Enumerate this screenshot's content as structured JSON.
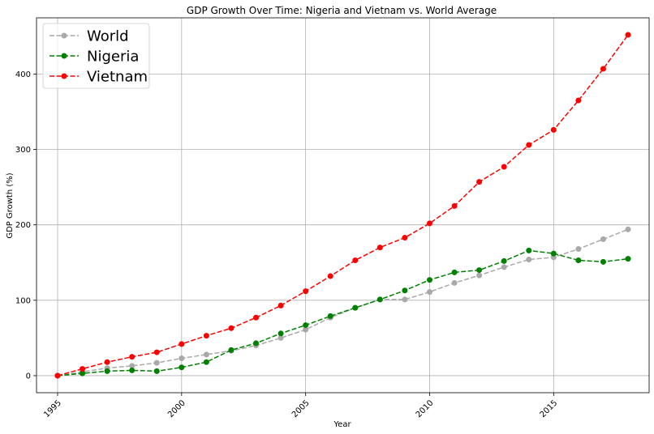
{
  "chart_data": {
    "type": "line",
    "title": "GDP Growth Over Time: Nigeria and Vietnam vs. World Average",
    "xlabel": "Year",
    "ylabel": "GDP Growth (%)",
    "x": [
      1995,
      1996,
      1997,
      1998,
      1999,
      2000,
      2001,
      2002,
      2003,
      2004,
      2005,
      2006,
      2007,
      2008,
      2009,
      2010,
      2011,
      2012,
      2013,
      2014,
      2015,
      2016,
      2017,
      2018
    ],
    "xticks": [
      1995,
      2000,
      2005,
      2010,
      2015
    ],
    "yticks": [
      0,
      100,
      200,
      300,
      400
    ],
    "xlim": [
      1994.15,
      2018.85
    ],
    "ylim": [
      -22.6,
      474.6
    ],
    "grid": true,
    "legend_position": "top-left",
    "series": [
      {
        "name": "World",
        "color": "#a9a9a9",
        "values": [
          0,
          5,
          10,
          13,
          17,
          23,
          28,
          33,
          40,
          50,
          61,
          77,
          90,
          101,
          101,
          111,
          123,
          133,
          144,
          154,
          157,
          168,
          181,
          194
        ]
      },
      {
        "name": "Nigeria",
        "color": "#008000",
        "values": [
          0,
          3,
          6,
          7,
          6,
          11,
          18,
          34,
          43,
          56,
          67,
          79,
          90,
          101,
          113,
          127,
          137,
          140,
          152,
          166,
          162,
          153,
          151,
          155
        ]
      },
      {
        "name": "Vietnam",
        "color": "#ff0000",
        "values": [
          0,
          9,
          18,
          25,
          31,
          42,
          53,
          63,
          77,
          93,
          112,
          132,
          153,
          170,
          183,
          202,
          225,
          257,
          277,
          306,
          326,
          365,
          407,
          452
        ]
      }
    ]
  }
}
